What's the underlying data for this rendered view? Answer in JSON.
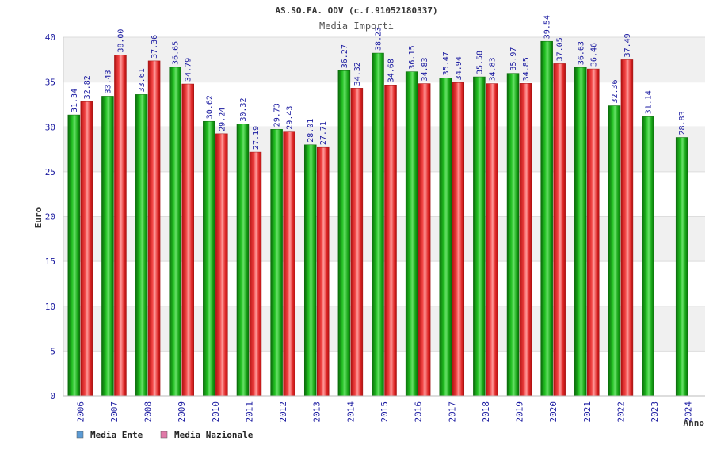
{
  "chart_data": {
    "type": "bar",
    "title": "AS.SO.FA. ODV (c.f.91052180337)",
    "subtitle": "Media Importi",
    "ylabel": "Euro",
    "xlabel": "Anno",
    "ylim": [
      0,
      40
    ],
    "yticks": [
      0,
      5,
      10,
      15,
      20,
      25,
      30,
      35,
      40
    ],
    "categories": [
      "2006",
      "2007",
      "2008",
      "2009",
      "2010",
      "2011",
      "2012",
      "2013",
      "2014",
      "2015",
      "2016",
      "2017",
      "2018",
      "2019",
      "2020",
      "2021",
      "2022",
      "2023",
      "2024"
    ],
    "series": [
      {
        "name": "Media Ente",
        "color": "#1aa01a",
        "values": [
          31.34,
          33.43,
          33.61,
          36.65,
          30.62,
          30.32,
          29.73,
          28.01,
          36.27,
          38.23,
          36.15,
          35.47,
          35.58,
          35.97,
          39.54,
          36.63,
          32.36,
          31.14,
          28.83
        ],
        "labels": [
          "31.34",
          "33.43",
          "33.61",
          "36.65",
          "30.62",
          "30.32",
          "29.73",
          "28.01",
          "36.27",
          "38.23",
          "36.15",
          "35.47",
          "35.58",
          "35.97",
          "39.54",
          "36.63",
          "32.36",
          "31.14",
          "28.83"
        ]
      },
      {
        "name": "Media Nazionale",
        "color": "#e02828",
        "values": [
          32.82,
          38.0,
          37.36,
          34.79,
          29.24,
          27.19,
          29.43,
          27.71,
          34.32,
          34.68,
          34.83,
          34.94,
          34.83,
          34.85,
          37.05,
          36.46,
          37.49,
          null,
          null
        ],
        "labels": [
          "32.82",
          "38.00",
          "37.36",
          "34.79",
          "29.24",
          "27.19",
          "29.43",
          "27.71",
          "34.32",
          "34.68",
          "34.83",
          "34.94",
          "34.83",
          "34.85",
          "37.05",
          "36.46",
          "37.49",
          null,
          null
        ]
      }
    ],
    "legend": {
      "placement": "bottom-left",
      "items": [
        {
          "label": "Media Ente",
          "color": "#5b9bd5"
        },
        {
          "label": "Media Nazionale",
          "color": "#e07aa8"
        }
      ]
    },
    "grid": true
  }
}
